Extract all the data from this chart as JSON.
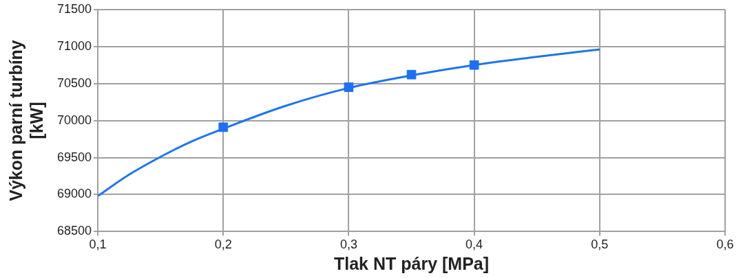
{
  "chart_data": {
    "type": "scatter",
    "xlabel": "Tlak NT páry [MPa]",
    "ylabel": "Výkon parní turbíny [kW]",
    "xlim": [
      0.1,
      0.6
    ],
    "ylim": [
      68500,
      71500
    ],
    "xticks": [
      {
        "value": 0.1,
        "label": "0,1"
      },
      {
        "value": 0.2,
        "label": "0,2"
      },
      {
        "value": 0.3,
        "label": "0,3"
      },
      {
        "value": 0.4,
        "label": "0,4"
      },
      {
        "value": 0.5,
        "label": "0,5"
      },
      {
        "value": 0.6,
        "label": "0,6"
      }
    ],
    "yticks": [
      68500,
      69000,
      69500,
      70000,
      70500,
      71000,
      71500
    ],
    "grid": true,
    "legend": false,
    "marker": "square",
    "series": [
      {
        "type": "line",
        "color": "#1f74ec",
        "marker": "none",
        "x": [
          0.1,
          0.125,
          0.15,
          0.175,
          0.2,
          0.25,
          0.3,
          0.35,
          0.4,
          0.45,
          0.5
        ],
        "values": [
          68980,
          69270,
          69510,
          69720,
          69890,
          70200,
          70440,
          70610,
          70750,
          70860,
          70960
        ]
      },
      {
        "type": "scatter",
        "color": "#1f6ff2",
        "x": [
          0.2,
          0.3,
          0.35,
          0.4
        ],
        "values": [
          69910,
          70450,
          70620,
          70750
        ]
      }
    ]
  }
}
